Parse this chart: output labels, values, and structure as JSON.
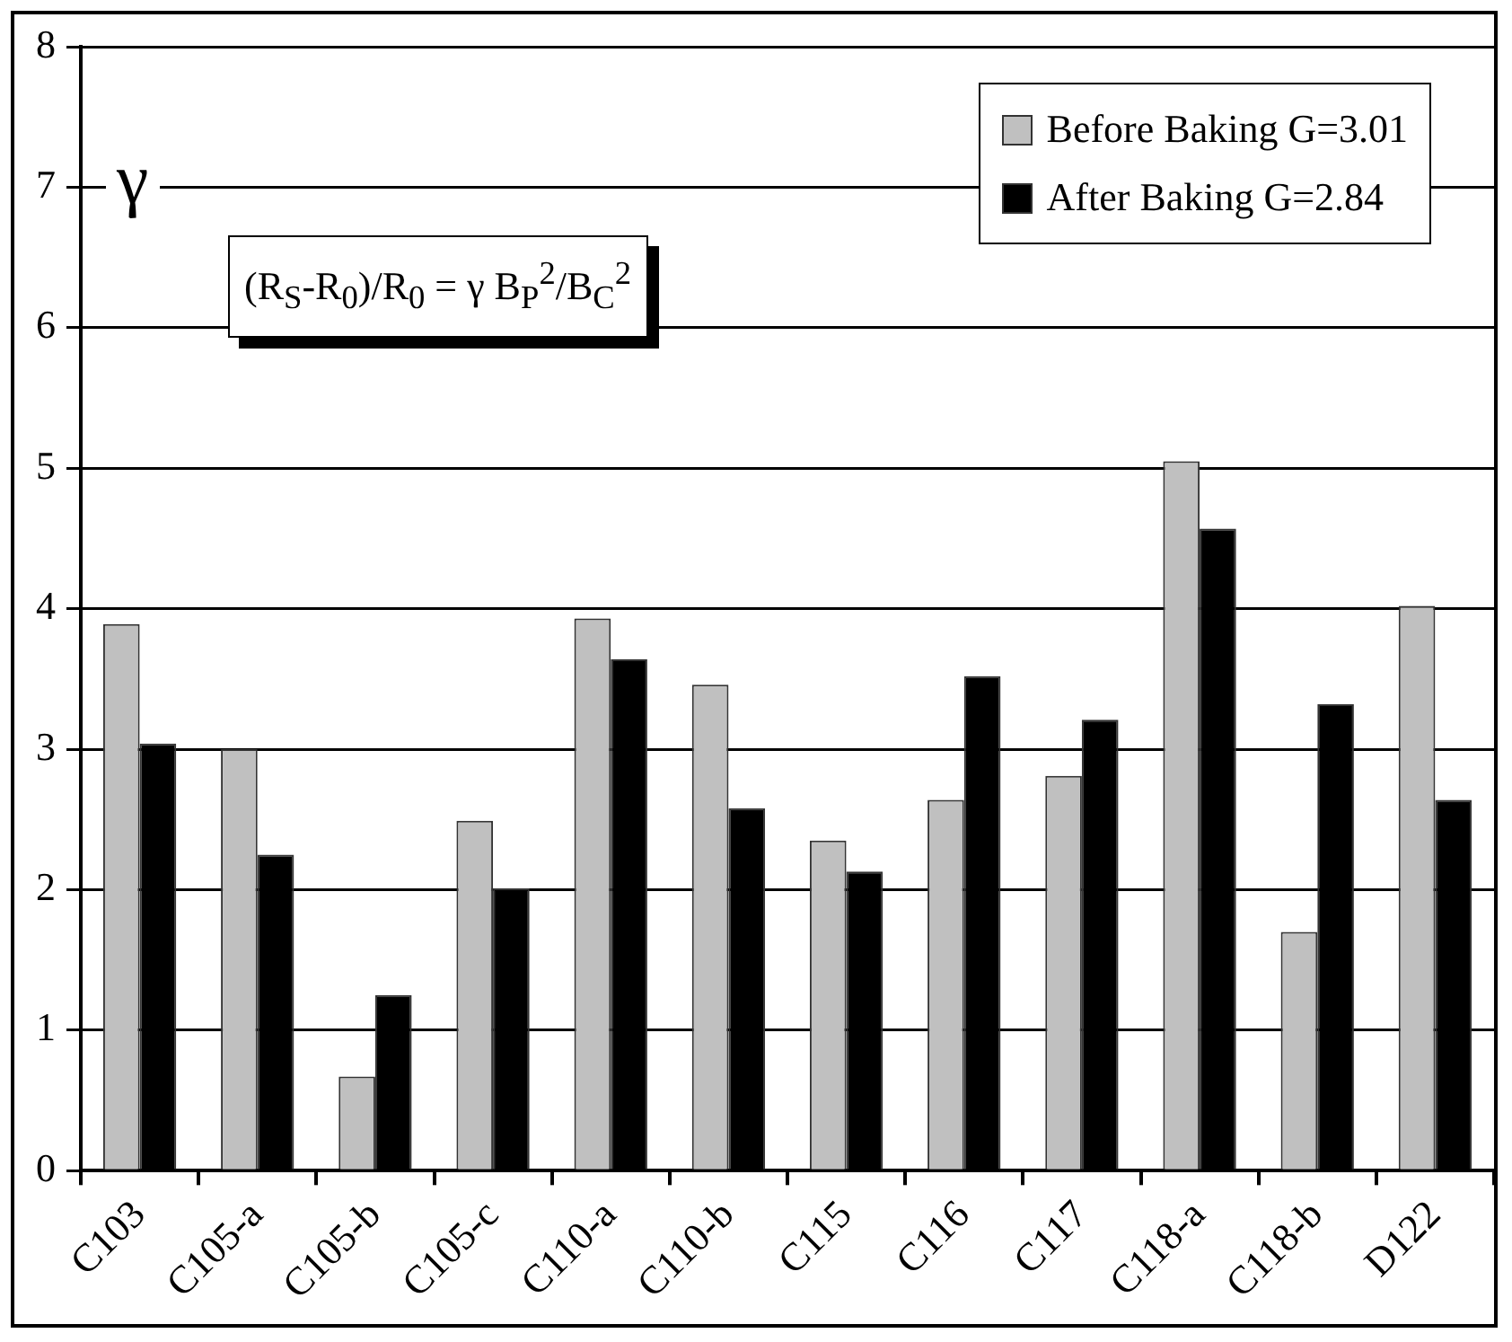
{
  "chart_data": {
    "type": "bar",
    "ylabel": "γ",
    "categories": [
      "C103",
      "C105-a",
      "C105-b",
      "C105-c",
      "C110-a",
      "C110-b",
      "C115",
      "C116",
      "C117",
      "C118-a",
      "C118-b",
      "D122"
    ],
    "series": [
      {
        "name": "Before Baking G=3.01",
        "color": "#c0c0c0",
        "values": [
          3.89,
          3.0,
          0.67,
          2.49,
          3.93,
          3.46,
          2.35,
          2.64,
          2.81,
          5.05,
          1.7,
          4.02
        ]
      },
      {
        "name": "After Baking G=2.84",
        "color": "#000000",
        "values": [
          3.04,
          2.25,
          1.25,
          2.01,
          3.64,
          2.58,
          2.13,
          3.52,
          3.21,
          4.57,
          3.32,
          2.64
        ]
      }
    ],
    "ylim": [
      0,
      8
    ],
    "yticks": [
      0,
      1,
      2,
      3,
      4,
      5,
      6,
      7,
      8
    ],
    "grid": "y",
    "legend": "top right",
    "annotations": [
      "(R$_{S}$-R$_{0}$)/R$_{0}$ = γ B$_{P}$$^{2}$/B$_{C}$$^{2}$"
    ]
  }
}
